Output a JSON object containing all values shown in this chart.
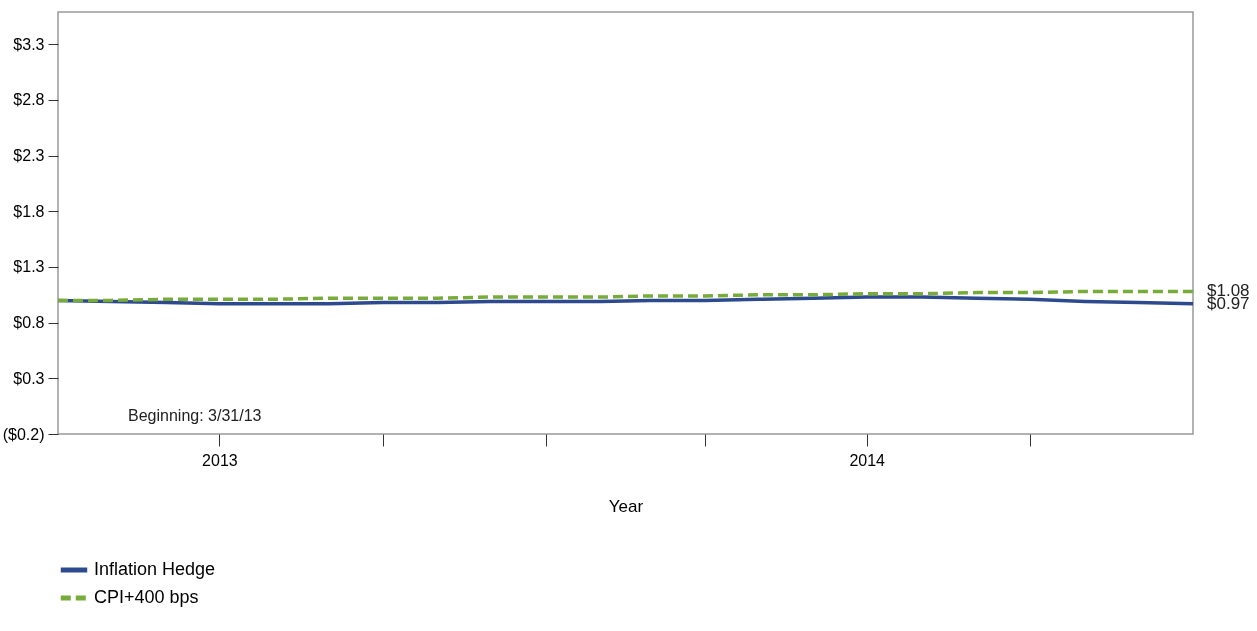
{
  "chart_data": {
    "type": "line",
    "xlabel": "Year",
    "x": [
      "2013-03-31",
      "2013-04-30",
      "2013-05-31",
      "2013-06-30",
      "2013-07-31",
      "2013-08-31",
      "2013-09-30",
      "2013-10-31",
      "2013-11-30",
      "2013-12-31",
      "2014-01-31",
      "2014-02-28",
      "2014-03-31",
      "2014-04-30",
      "2014-05-31",
      "2014-06-30",
      "2014-07-31",
      "2014-08-31",
      "2014-09-30",
      "2014-10-31",
      "2014-11-30",
      "2014-12-31"
    ],
    "series": [
      {
        "name": "Inflation Hedge",
        "color": "#2e4a8f",
        "line_style": "solid",
        "values": [
          1.0,
          0.99,
          0.98,
          0.97,
          0.97,
          0.97,
          0.98,
          0.98,
          0.99,
          0.99,
          0.99,
          1.0,
          1.0,
          1.01,
          1.02,
          1.03,
          1.03,
          1.02,
          1.01,
          0.99,
          0.98,
          0.97
        ]
      },
      {
        "name": "CPI+400 bps",
        "color": "#77ac3a",
        "line_style": "dashed",
        "values": [
          1.0,
          1.0,
          1.01,
          1.01,
          1.01,
          1.02,
          1.02,
          1.02,
          1.03,
          1.03,
          1.03,
          1.04,
          1.04,
          1.05,
          1.05,
          1.06,
          1.06,
          1.07,
          1.07,
          1.08,
          1.08,
          1.08
        ]
      }
    ],
    "xlim": [
      "2013-03-31",
      "2014-12-31"
    ],
    "xticks": [
      {
        "value": "2013-06-30",
        "label": "2013"
      },
      {
        "value": "2013-09-30",
        "label": null
      },
      {
        "value": "2013-12-31",
        "label": null
      },
      {
        "value": "2014-03-31",
        "label": null
      },
      {
        "value": "2014-06-30",
        "label": "2014"
      },
      {
        "value": "2014-09-30",
        "label": null
      }
    ],
    "ylim": [
      -0.2,
      3.59
    ],
    "yticks": [
      {
        "value": -0.2,
        "label": "($0.2)"
      },
      {
        "value": 0.3,
        "label": "$0.3"
      },
      {
        "value": 0.8,
        "label": "$0.8"
      },
      {
        "value": 1.3,
        "label": "$1.3"
      },
      {
        "value": 1.8,
        "label": "$1.8"
      },
      {
        "value": 2.3,
        "label": "$2.3"
      },
      {
        "value": 2.8,
        "label": "$2.8"
      },
      {
        "value": 3.3,
        "label": "$3.3"
      }
    ],
    "annotations": [
      "Beginning: 3/31/13",
      {
        "text": "$1.08",
        "x": "2014-12-31",
        "y": 1.08
      },
      {
        "text": "$0.97",
        "x": "2014-12-31",
        "y": 0.97
      }
    ],
    "grid": false,
    "legend": "bottom",
    "marker": "none"
  }
}
